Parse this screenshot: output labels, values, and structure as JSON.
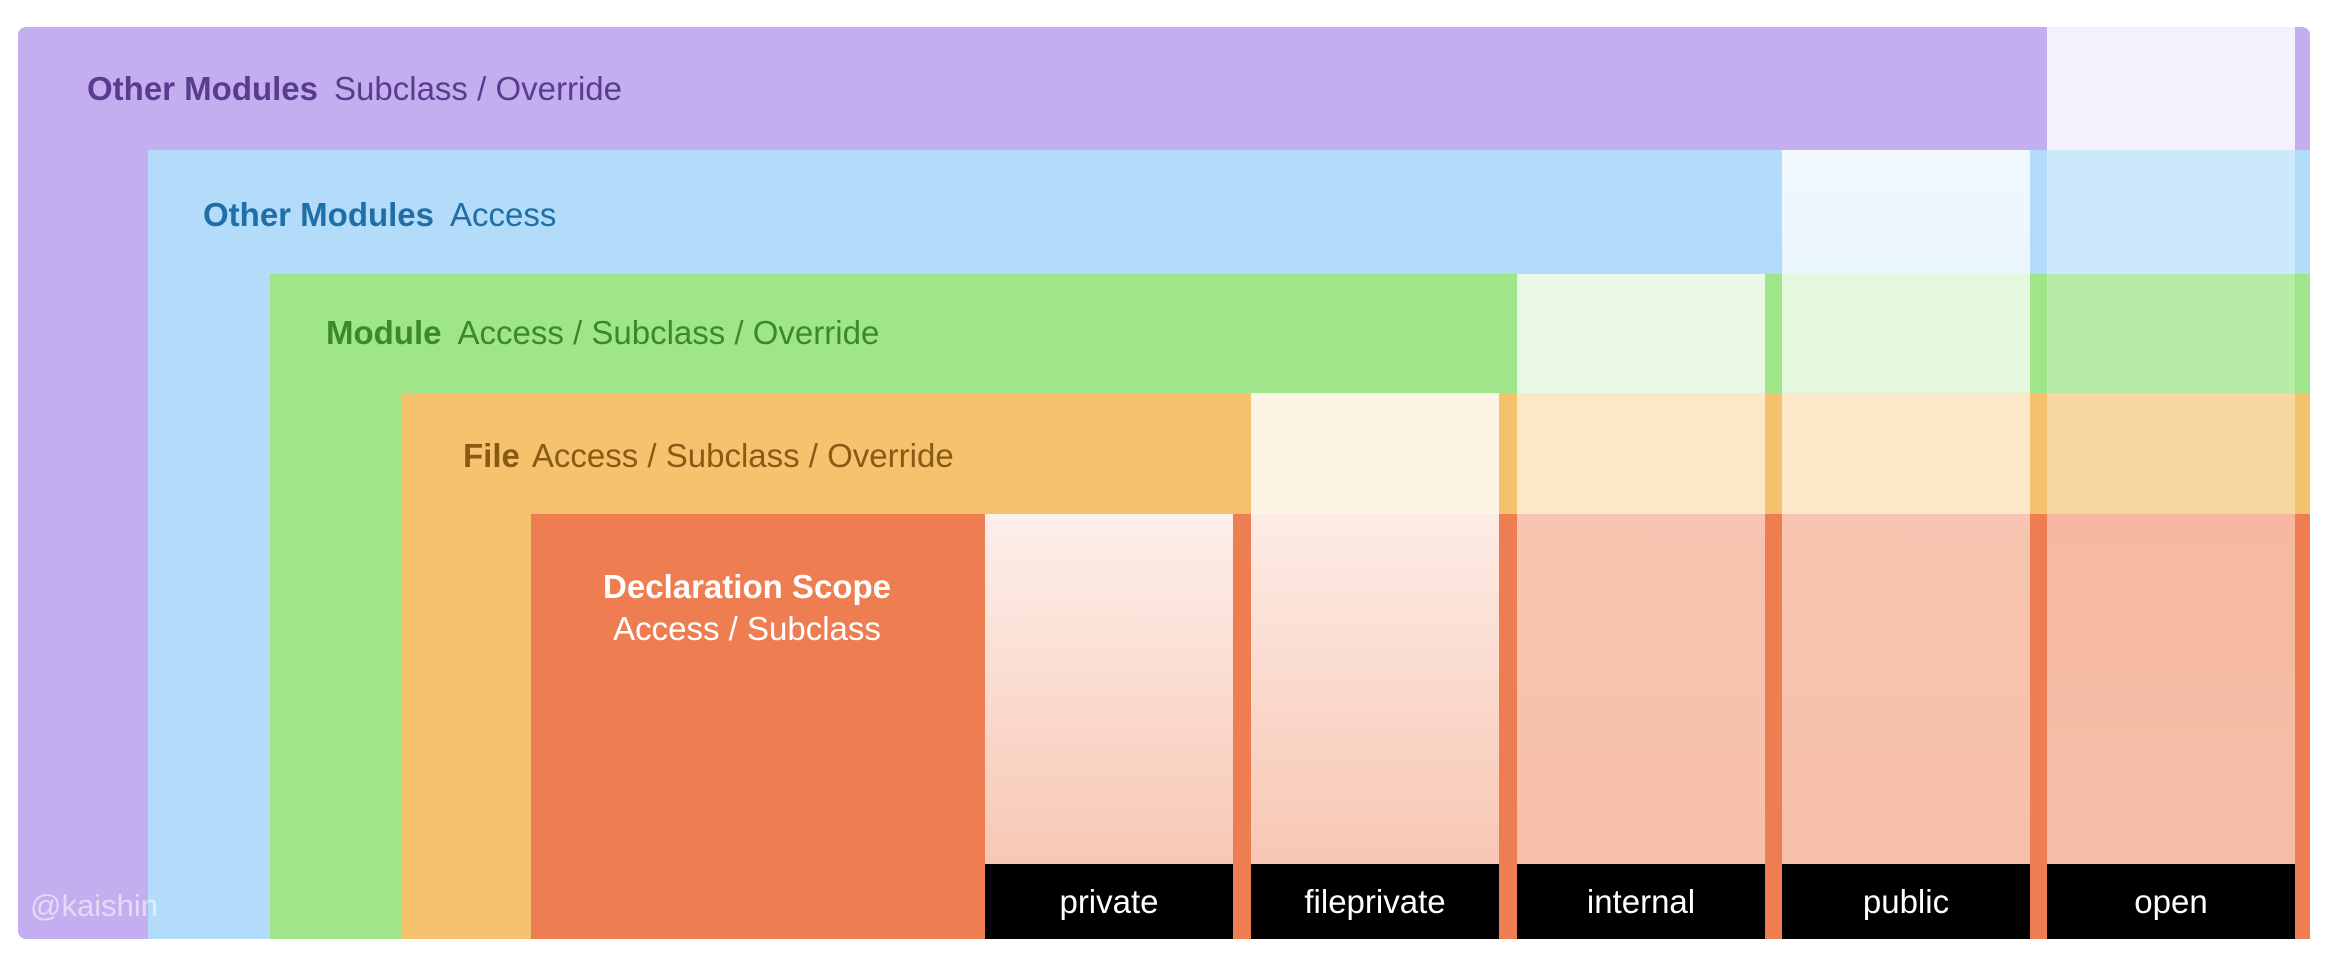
{
  "colors": {
    "other_subclass": "#c3aeef",
    "other_access": "#b2dcf9",
    "module": "#9fe58a",
    "file": "#f5c36e",
    "declaration": "#ee7e52",
    "label_bar": "#000000"
  },
  "layers": {
    "other_subclass": {
      "key": "Other Modules",
      "text": "Subclass / Override"
    },
    "other_access": {
      "key": "Other Modules",
      "text": "Access"
    },
    "module": {
      "key": "Module",
      "text": "Access / Subclass / Override"
    },
    "file": {
      "key": "File",
      "text": "Access / Subclass / Override"
    },
    "declaration": {
      "title": "Declaration Scope",
      "text": "Access / Subclass"
    }
  },
  "columns": [
    {
      "name": "private"
    },
    {
      "name": "fileprivate"
    },
    {
      "name": "internal"
    },
    {
      "name": "public"
    },
    {
      "name": "open"
    }
  ],
  "watermark": "@kaishin"
}
